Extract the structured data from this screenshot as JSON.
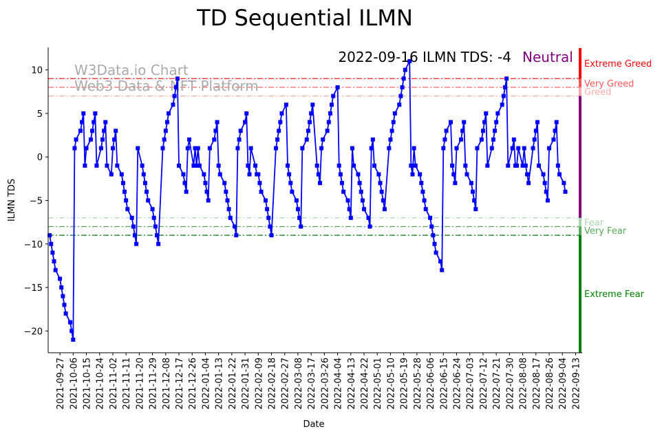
{
  "chart_data": {
    "type": "line",
    "title": "TD Sequential ILMN",
    "xlabel": "Date",
    "ylabel": "ILMN TDS",
    "ylim": [
      -22.5,
      12.5
    ],
    "xlim": [
      "2021-09-19",
      "2022-09-17"
    ],
    "yticks": [
      10,
      5,
      0,
      -5,
      -10,
      -15,
      -20
    ],
    "xticks": [
      "2021-09-27",
      "2021-10-06",
      "2021-10-15",
      "2021-10-24",
      "2021-11-02",
      "2021-11-11",
      "2021-11-20",
      "2021-11-29",
      "2021-12-08",
      "2021-12-17",
      "2021-12-26",
      "2022-01-04",
      "2022-01-13",
      "2022-01-22",
      "2022-01-31",
      "2022-02-09",
      "2022-02-18",
      "2022-02-27",
      "2022-03-08",
      "2022-03-17",
      "2022-03-26",
      "2022-04-04",
      "2022-04-13",
      "2022-04-22",
      "2022-05-01",
      "2022-05-10",
      "2022-05-19",
      "2022-05-28",
      "2022-06-06",
      "2022-06-15",
      "2022-06-24",
      "2022-07-03",
      "2022-07-12",
      "2022-07-21",
      "2022-07-30",
      "2022-08-08",
      "2022-08-17",
      "2022-08-26",
      "2022-09-04",
      "2022-09-13"
    ],
    "series_name": "ILMN TDS",
    "series_color": "#0000ff",
    "start_date": "2021-09-20",
    "end_date": "2022-09-16",
    "sampling": "trading days",
    "values": [
      -9,
      -10,
      -11,
      -12,
      -13,
      -14,
      -15,
      -16,
      -17,
      -18,
      -19,
      -20,
      -21,
      1,
      2,
      3,
      4,
      5,
      -1,
      1,
      2,
      3,
      4,
      5,
      -1,
      1,
      2,
      3,
      4,
      -1,
      -2,
      1,
      2,
      3,
      -1,
      -2,
      -3,
      -4,
      -5,
      -6,
      -7,
      -8,
      -9,
      -10,
      1,
      -1,
      -2,
      -3,
      -4,
      -5,
      -6,
      -7,
      -8,
      -9,
      -10,
      1,
      2,
      3,
      4,
      5,
      6,
      7,
      8,
      9,
      -1,
      -2,
      -3,
      -4,
      1,
      2,
      -1,
      1,
      -1,
      1,
      -1,
      -2,
      -3,
      -4,
      -5,
      1,
      2,
      3,
      4,
      -1,
      -2,
      -3,
      -4,
      -5,
      -6,
      -7,
      -8,
      -9,
      1,
      2,
      3,
      4,
      5,
      -1,
      -2,
      1,
      -1,
      -2,
      -2,
      -3,
      -4,
      -5,
      -6,
      -7,
      -8,
      -9,
      1,
      2,
      3,
      4,
      5,
      6,
      -1,
      -2,
      -3,
      -4,
      -5,
      -6,
      -7,
      -8,
      1,
      2,
      3,
      4,
      5,
      6,
      -1,
      -2,
      -3,
      1,
      2,
      3,
      4,
      5,
      6,
      7,
      8,
      -1,
      -2,
      -3,
      -4,
      -5,
      -6,
      -7,
      1,
      -1,
      -2,
      -3,
      -4,
      -5,
      -6,
      -7,
      -8,
      1,
      2,
      -1,
      -2,
      -3,
      -4,
      -5,
      -6,
      1,
      2,
      3,
      4,
      5,
      6,
      7,
      8,
      9,
      10,
      11,
      -1,
      -2,
      1,
      -1,
      -2,
      -3,
      -4,
      -5,
      -6,
      -7,
      -8,
      -9,
      -10,
      -11,
      -12,
      -13,
      1,
      2,
      3,
      4,
      -1,
      -2,
      -3,
      1,
      2,
      3,
      4,
      -1,
      -2,
      -3,
      -4,
      -5,
      -6,
      1,
      2,
      3,
      4,
      5,
      -1,
      1,
      2,
      3,
      4,
      5,
      6,
      7,
      8,
      9,
      -1,
      1,
      2,
      -1,
      -1,
      1,
      -1,
      1,
      -1,
      -2,
      -3,
      1,
      2,
      3,
      4,
      -1,
      -2,
      -3,
      -4,
      -5,
      1,
      2,
      3,
      4,
      -1,
      -2,
      -3,
      -4
    ],
    "thresholds": [
      {
        "label": "Extreme Greed",
        "value": 9,
        "color": "#ff0000"
      },
      {
        "label": "Very Greed",
        "value": 8,
        "color": "#ff5555"
      },
      {
        "label": "Greed",
        "value": 7,
        "color": "#ffaaaa"
      },
      {
        "label": "Fear",
        "value": -7,
        "color": "#aad4aa"
      },
      {
        "label": "Very Fear",
        "value": -8,
        "color": "#55aa55"
      },
      {
        "label": "Extreme Fear",
        "value": -9,
        "color": "#008000"
      }
    ],
    "zone_bar": [
      {
        "from": 9,
        "to": 12.5,
        "color": "#ff0000"
      },
      {
        "from": 8,
        "to": 9,
        "color": "#ff5555"
      },
      {
        "from": 7,
        "to": 8,
        "color": "#ffaaaa"
      },
      {
        "from": -7,
        "to": 7,
        "color": "#800080"
      },
      {
        "from": -8,
        "to": -7,
        "color": "#aad4aa"
      },
      {
        "from": -9,
        "to": -8,
        "color": "#55aa55"
      },
      {
        "from": -22.5,
        "to": -9,
        "color": "#008000"
      }
    ],
    "zone_labels": {
      "extreme_greed": "Extreme Greed",
      "very_greed": "Very Greed",
      "greed": "Greed",
      "fear": "Fear",
      "very_fear": "Very Fear",
      "extreme_fear": "Extreme Fear"
    },
    "annotation": {
      "text": "2022-09-16 ILMN TDS: -4",
      "status": "Neutral",
      "status_color": "#800080"
    },
    "watermark": {
      "line1": "W3Data.io Chart",
      "line2": "Web3 Data & NFT Platform"
    }
  }
}
